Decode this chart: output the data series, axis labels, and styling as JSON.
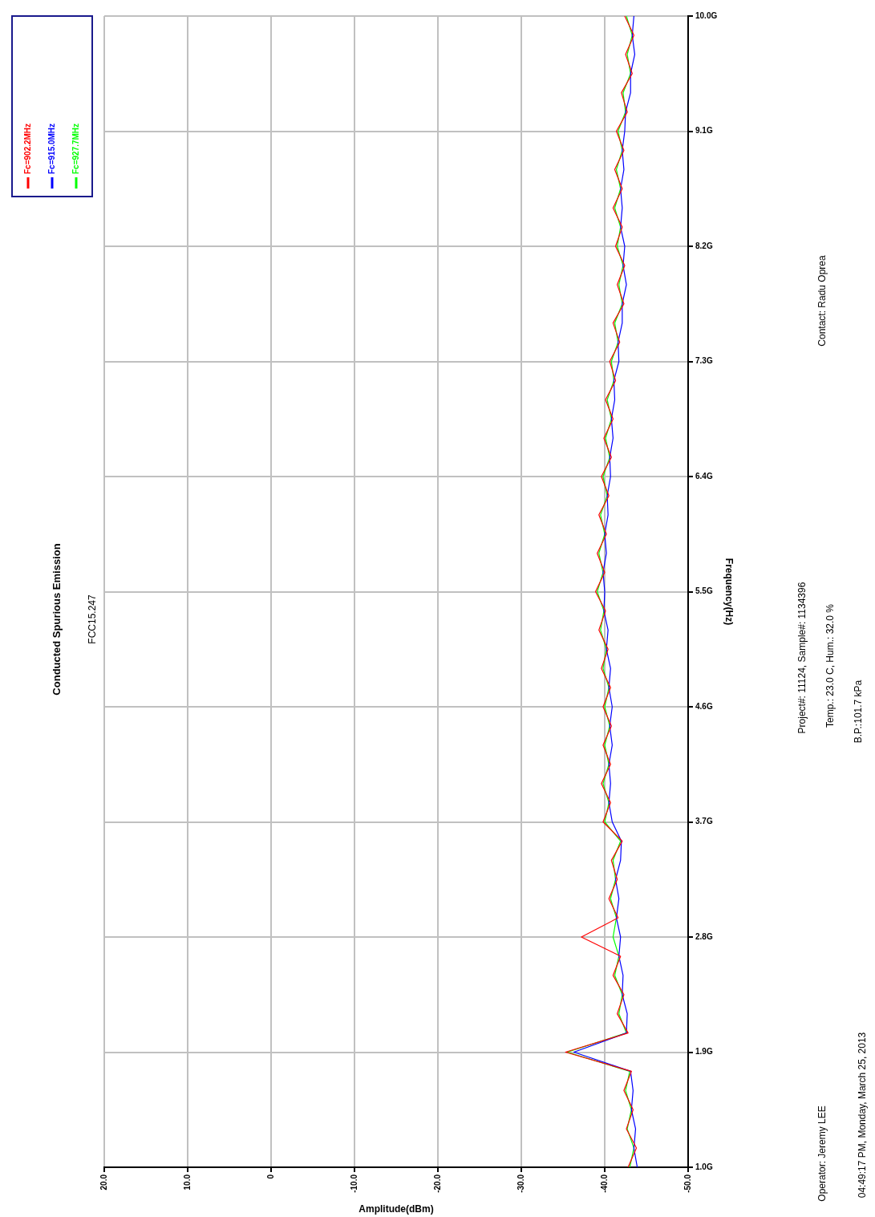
{
  "chart_data": {
    "type": "line",
    "title": "Conducted Spurious Emission",
    "subtitle": "FCC15.247",
    "xlabel": "Amplitude(dBm)",
    "ylabel": "Frequency(Hz)",
    "series": [
      {
        "name": "Fc=902.2MHz",
        "color": "#ff0000",
        "x": [
          -42.8,
          -43.8,
          -42.6,
          -43.4,
          -42.3,
          -43.2,
          -35.3,
          -42.8,
          -41.5,
          -42.3,
          -41.0,
          -41.9,
          -37.2,
          -41.6,
          -40.5,
          -41.5,
          -40.8,
          -42.1,
          -39.8,
          -40.7,
          -39.6,
          -40.7,
          -39.8,
          -40.8,
          -39.8,
          -40.7,
          -39.6,
          -40.4,
          -39.3,
          -40.1,
          -38.9,
          -40.0,
          -39.1,
          -40.2,
          -39.3,
          -40.5,
          -39.6,
          -40.8,
          -39.9,
          -41.0,
          -40.1,
          -41.3,
          -40.6,
          -41.8,
          -41.0,
          -42.3,
          -41.5,
          -42.4,
          -41.3,
          -42.1,
          -41.0,
          -42.1,
          -41.2,
          -42.3,
          -41.4,
          -42.7,
          -42.0,
          -43.3,
          -42.5,
          -43.5,
          -42.4
        ],
        "values": [
          1.0,
          1.15,
          1.3,
          1.45,
          1.6,
          1.75,
          1.9,
          2.05,
          2.2,
          2.35,
          2.5,
          2.65,
          2.8,
          2.95,
          3.1,
          3.25,
          3.4,
          3.55,
          3.7,
          3.85,
          4.0,
          4.15,
          4.3,
          4.45,
          4.6,
          4.75,
          4.9,
          5.05,
          5.2,
          5.35,
          5.5,
          5.65,
          5.8,
          5.95,
          6.1,
          6.25,
          6.4,
          6.55,
          6.7,
          6.85,
          7.0,
          7.15,
          7.3,
          7.45,
          7.6,
          7.75,
          7.9,
          8.05,
          8.2,
          8.35,
          8.5,
          8.65,
          8.8,
          8.95,
          9.1,
          9.25,
          9.4,
          9.55,
          9.7,
          9.85,
          10.0
        ]
      },
      {
        "name": "Fc=915.0MHz",
        "color": "#0000ff",
        "x": [
          -43.9,
          -43.5,
          -43.7,
          -43.2,
          -43.4,
          -43.1,
          -36.3,
          -42.6,
          -42.7,
          -42.1,
          -42.2,
          -41.7,
          -41.9,
          -41.4,
          -41.7,
          -41.3,
          -41.9,
          -42.0,
          -40.9,
          -40.5,
          -40.7,
          -40.5,
          -40.9,
          -40.6,
          -40.9,
          -40.5,
          -40.7,
          -40.2,
          -40.4,
          -39.9,
          -40.0,
          -39.8,
          -40.2,
          -40.0,
          -40.4,
          -40.3,
          -40.7,
          -40.6,
          -41.0,
          -40.8,
          -41.2,
          -41.1,
          -41.7,
          -41.6,
          -42.1,
          -42.1,
          -42.6,
          -42.2,
          -42.4,
          -41.9,
          -42.1,
          -41.9,
          -42.3,
          -42.1,
          -42.4,
          -42.5,
          -43.1,
          -43.1,
          -43.6,
          -43.3,
          -43.5
        ],
        "values": [
          1.0,
          1.15,
          1.3,
          1.45,
          1.6,
          1.75,
          1.9,
          2.05,
          2.2,
          2.35,
          2.5,
          2.65,
          2.8,
          2.95,
          3.1,
          3.25,
          3.4,
          3.55,
          3.7,
          3.85,
          4.0,
          4.15,
          4.3,
          4.45,
          4.6,
          4.75,
          4.9,
          5.05,
          5.2,
          5.35,
          5.5,
          5.65,
          5.8,
          5.95,
          6.1,
          6.25,
          6.4,
          6.55,
          6.7,
          6.85,
          7.0,
          7.15,
          7.3,
          7.45,
          7.6,
          7.75,
          7.9,
          8.05,
          8.2,
          8.35,
          8.5,
          8.65,
          8.8,
          8.95,
          9.1,
          9.25,
          9.4,
          9.55,
          9.7,
          9.85,
          10.0
        ]
      },
      {
        "name": "Fc=927.7MHz",
        "color": "#00ff00",
        "x": [
          -43.0,
          -43.5,
          -42.7,
          -43.2,
          -42.5,
          -43.0,
          -35.5,
          -42.6,
          -41.7,
          -42.1,
          -41.2,
          -41.7,
          -41.0,
          -41.4,
          -40.7,
          -41.3,
          -41.0,
          -41.9,
          -40.0,
          -40.5,
          -39.8,
          -40.5,
          -40.0,
          -40.6,
          -40.0,
          -40.5,
          -39.8,
          -40.2,
          -39.5,
          -39.9,
          -39.1,
          -39.8,
          -39.3,
          -40.0,
          -39.5,
          -40.3,
          -39.8,
          -40.6,
          -40.1,
          -40.8,
          -40.3,
          -41.1,
          -40.8,
          -41.6,
          -41.2,
          -42.1,
          -41.7,
          -42.2,
          -41.5,
          -41.9,
          -41.2,
          -41.9,
          -41.4,
          -42.1,
          -41.6,
          -42.5,
          -42.2,
          -43.1,
          -42.7,
          -43.3,
          -42.6
        ],
        "values": [
          1.0,
          1.15,
          1.3,
          1.45,
          1.6,
          1.75,
          1.9,
          2.05,
          2.2,
          2.35,
          2.5,
          2.65,
          2.8,
          2.95,
          3.1,
          3.25,
          3.4,
          3.55,
          3.7,
          3.85,
          4.0,
          4.15,
          4.3,
          4.45,
          4.6,
          4.75,
          4.9,
          5.05,
          5.2,
          5.35,
          5.5,
          5.65,
          5.8,
          5.95,
          6.1,
          6.25,
          6.4,
          6.55,
          6.7,
          6.85,
          7.0,
          7.15,
          7.3,
          7.45,
          7.6,
          7.75,
          7.9,
          8.05,
          8.2,
          8.35,
          8.5,
          8.65,
          8.8,
          8.95,
          9.1,
          9.25,
          9.4,
          9.55,
          9.7,
          9.85,
          10.0
        ]
      }
    ],
    "xlim": [
      20,
      -50
    ],
    "xticks": [
      {
        "value": 20,
        "label": "20.0"
      },
      {
        "value": 10,
        "label": "10.0"
      },
      0,
      {
        "value": -10,
        "label": "-10.0"
      },
      {
        "value": -20,
        "label": "-20.0"
      },
      {
        "value": -30,
        "label": "-30.0"
      },
      {
        "value": -40,
        "label": "-40.0"
      },
      {
        "value": -50,
        "label": "-50.0"
      }
    ],
    "ylim": [
      1.0,
      10.0
    ],
    "yticks": [
      {
        "value": 1.0,
        "label": "1.0G"
      },
      {
        "value": 1.9,
        "label": "1.9G"
      },
      {
        "value": 2.8,
        "label": "2.8G"
      },
      {
        "value": 3.7,
        "label": "3.7G"
      },
      {
        "value": 4.6,
        "label": "4.6G"
      },
      {
        "value": 5.5,
        "label": "5.5G"
      },
      {
        "value": 6.4,
        "label": "6.4G"
      },
      {
        "value": 7.3,
        "label": "7.3G"
      },
      {
        "value": 8.2,
        "label": "8.2G"
      },
      {
        "value": 9.1,
        "label": "9.1G"
      },
      {
        "value": 10.0,
        "label": "10.0G"
      }
    ],
    "grid": true,
    "legend": "top left",
    "marker": "none",
    "line_style": "solid",
    "annotations": [
      "Project#: 11124, Sample#: 1134396",
      "Temp.: 23.0 C, Hum.: 32.0 %",
      "B.P.:101.7 kPa",
      "Contact: Radu Oprea",
      "Operator: Jeremy LEE",
      "04:49:17 PM, Monday, March 25, 2013"
    ]
  }
}
